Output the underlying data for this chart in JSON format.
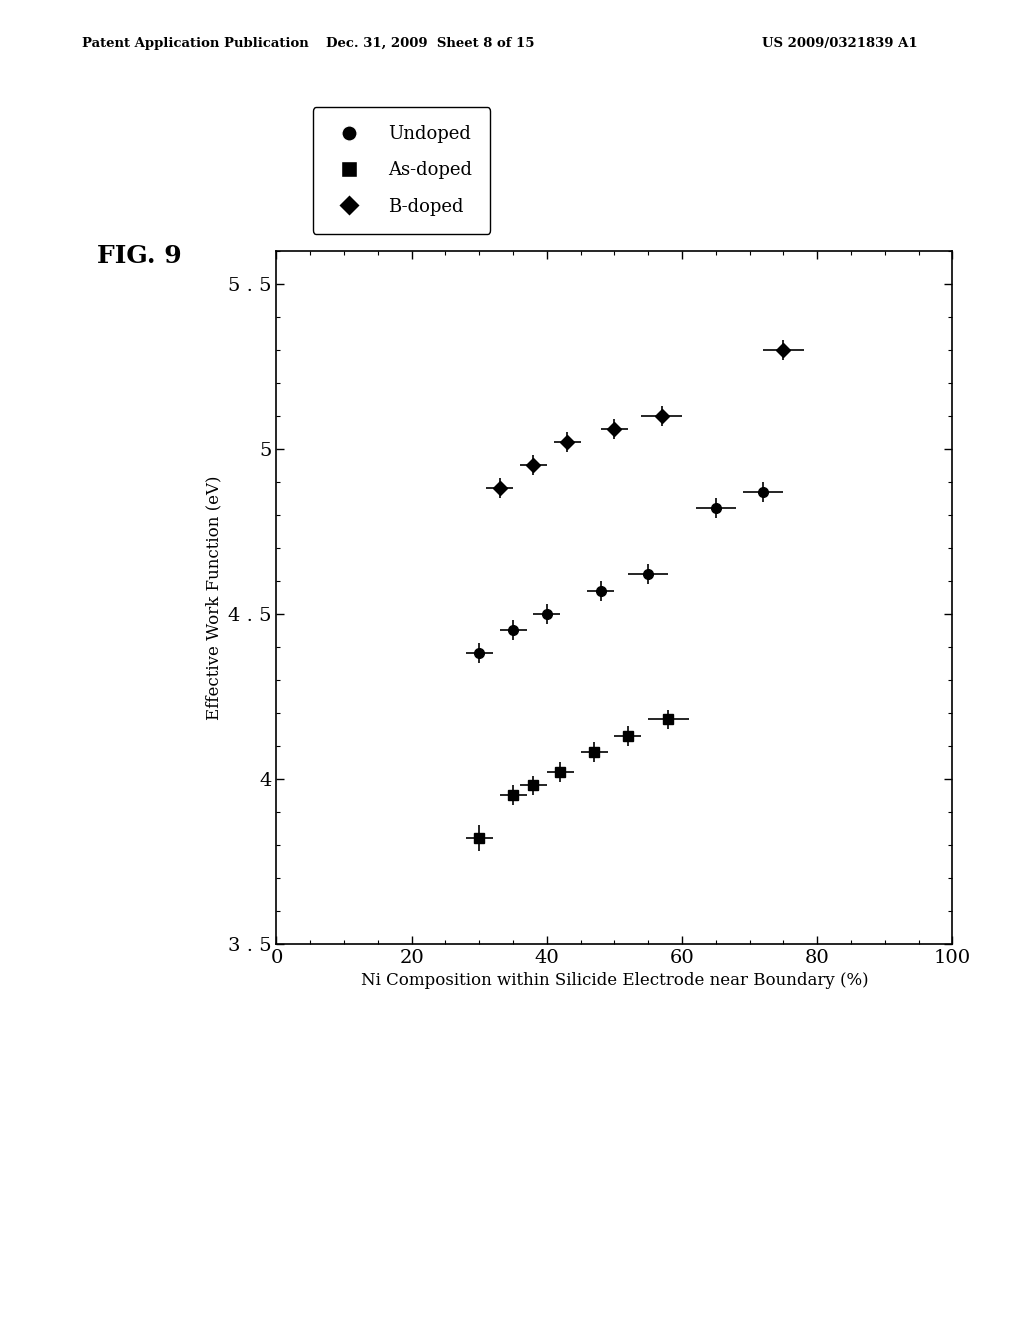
{
  "title_fig": "FIG. 9",
  "xlabel": "Ni Composition within Silicide Electrode near Boundary (%)",
  "ylabel": "Effective Work Function (eV)",
  "xlim": [
    0,
    100
  ],
  "ylim": [
    3.5,
    5.6
  ],
  "xticks": [
    0,
    20,
    40,
    60,
    80,
    100
  ],
  "yticks": [
    3.5,
    4.0,
    4.5,
    5.0,
    5.5
  ],
  "ytick_labels": [
    "3 . 5",
    "4",
    "4 . 5",
    "5",
    "5 . 5"
  ],
  "undoped": {
    "x": [
      30,
      35,
      40,
      48,
      55,
      65,
      72
    ],
    "y": [
      4.38,
      4.45,
      4.5,
      4.57,
      4.62,
      4.82,
      4.87
    ],
    "xerr": [
      2,
      2,
      2,
      2,
      3,
      3,
      3
    ],
    "yerr": [
      0.03,
      0.03,
      0.03,
      0.03,
      0.03,
      0.03,
      0.03
    ]
  },
  "as_doped": {
    "x": [
      30,
      35,
      38,
      42,
      47,
      52,
      58
    ],
    "y": [
      3.82,
      3.95,
      3.98,
      4.02,
      4.08,
      4.13,
      4.18
    ],
    "xerr": [
      2,
      2,
      2,
      2,
      2,
      2,
      3
    ],
    "yerr": [
      0.04,
      0.03,
      0.03,
      0.03,
      0.03,
      0.03,
      0.03
    ]
  },
  "b_doped": {
    "x": [
      33,
      38,
      43,
      50,
      57,
      75
    ],
    "y": [
      4.88,
      4.95,
      5.02,
      5.06,
      5.1,
      5.3
    ],
    "xerr": [
      2,
      2,
      2,
      2,
      3,
      3
    ],
    "yerr": [
      0.03,
      0.03,
      0.03,
      0.03,
      0.03,
      0.03
    ]
  },
  "header_left": "Patent Application Publication",
  "header_mid": "Dec. 31, 2009  Sheet 8 of 15",
  "header_right": "US 2009/0321839 A1",
  "background_color": "#ffffff",
  "marker_color": "#000000"
}
